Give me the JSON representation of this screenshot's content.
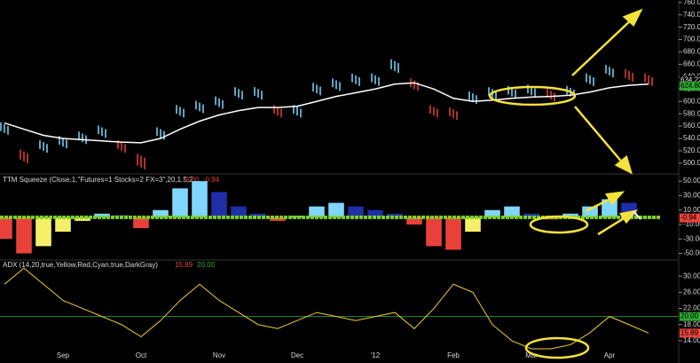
{
  "chart_data": [
    {
      "type": "price-bars",
      "categories": [
        null,
        null,
        null,
        "Sep",
        null,
        null,
        null,
        "Oct",
        null,
        null,
        null,
        "Nov",
        null,
        null,
        null,
        "Dec",
        null,
        null,
        null,
        "'12",
        null,
        null,
        null,
        "Feb",
        null,
        null,
        null,
        "Mar",
        null,
        null,
        null,
        "Apr",
        null,
        null
      ],
      "series": [
        {
          "name": "High",
          "values": [
            566,
            522,
            537,
            544,
            551,
            561,
            537,
            515,
            558,
            594,
            601,
            608,
            623,
            623,
            594,
            594,
            630,
            637,
            645,
            645,
            668,
            637,
            594,
            590,
            616,
            623,
            625,
            627,
            620,
            625,
            645,
            659,
            652,
            645
          ]
        },
        {
          "name": "Low",
          "values": [
            546,
            500,
            517,
            524,
            531,
            541,
            517,
            490,
            538,
            574,
            581,
            588,
            603,
            603,
            574,
            574,
            610,
            617,
            625,
            625,
            646,
            617,
            574,
            570,
            596,
            603,
            605,
            607,
            600,
            605,
            625,
            639,
            632,
            625
          ]
        },
        {
          "name": "MA",
          "color": "#ffffff",
          "values": [
            565,
            555,
            545,
            540,
            538,
            536,
            534,
            533,
            540,
            555,
            568,
            578,
            585,
            590,
            590,
            592,
            600,
            608,
            614,
            620,
            628,
            630,
            620,
            605,
            600,
            602,
            605,
            607,
            608,
            610,
            615,
            622,
            626,
            628
          ]
        }
      ],
      "up_color": "#7fd7ff",
      "down_color": "#e8413a",
      "ylim": [
        484,
        764
      ],
      "yticks": [
        {
          "value": 500,
          "label": "500.00"
        },
        {
          "value": 520,
          "label": "520.00"
        },
        {
          "value": 540,
          "label": "540.00"
        },
        {
          "value": 560,
          "label": "560.00"
        },
        {
          "value": 580,
          "label": "580.00"
        },
        {
          "value": 600,
          "label": "600.00"
        },
        {
          "value": 620,
          "label": "620.00"
        },
        {
          "value": 640,
          "label": "640.00"
        },
        {
          "value": 660,
          "label": "660.00"
        },
        {
          "value": 680,
          "label": "680.00"
        },
        {
          "value": 700,
          "label": "700.00"
        },
        {
          "value": 720,
          "label": "720.00"
        },
        {
          "value": 740,
          "label": "740.00"
        },
        {
          "value": 760,
          "label": "760.00"
        }
      ],
      "last_labels": [
        {
          "value": 634.22,
          "label": "634.22"
        },
        {
          "value": 624.8,
          "label": "624.80"
        }
      ]
    },
    {
      "type": "histogram-oscillator",
      "title": "TTM Squeeze (Close,1,\"Futures=1 Stocks=2 FX=3\",20,1.5,2,...",
      "readouts": [
        "0.00",
        "-0.94"
      ],
      "values": [
        -30,
        -50,
        -40,
        -20,
        -5,
        5,
        3,
        -15,
        10,
        40,
        50,
        35,
        15,
        5,
        -5,
        2,
        15,
        20,
        15,
        10,
        5,
        -10,
        -40,
        -45,
        -20,
        10,
        15,
        5,
        -3,
        5,
        15,
        25,
        20,
        -0.94
      ],
      "colors": {
        "up_rising": "#7fd7ff",
        "up_falling": "#1f2fa8",
        "down_falling": "#e8413a",
        "down_rising": "#f5f06a",
        "zero": "#7ed321"
      },
      "ylim": [
        -58,
        60
      ],
      "yticks": [
        {
          "value": 50,
          "label": "50.00"
        },
        {
          "value": 30,
          "label": "30.00"
        },
        {
          "value": 10,
          "label": "10.00"
        },
        {
          "value": -10,
          "label": "-10.00"
        },
        {
          "value": -30,
          "label": "-30.00"
        },
        {
          "value": -50,
          "label": "-50.00"
        }
      ],
      "last_labels": [
        {
          "value": -0.94,
          "label": "-0.94"
        }
      ]
    },
    {
      "type": "line",
      "title": "ADX (14,20,true,Yellow,Red,Cyan,true,DarkGray)",
      "readouts": [
        "15.89",
        "20.00"
      ],
      "values": [
        28,
        32,
        28,
        24,
        22,
        20,
        18,
        15,
        19,
        24,
        28,
        24,
        21,
        18,
        17,
        19,
        21,
        20,
        19,
        20,
        21,
        17,
        22,
        28,
        26,
        18,
        14,
        12,
        12,
        13,
        16,
        20,
        18,
        15.89
      ],
      "color": "#f0d030",
      "threshold": 20,
      "threshold_color": "#2e8b2e",
      "ylim": [
        12,
        34
      ],
      "yticks": [
        {
          "value": 30,
          "label": "30.00"
        },
        {
          "value": 26,
          "label": "26.00"
        },
        {
          "value": 22,
          "label": "22.00"
        },
        {
          "value": 18,
          "label": "18.00"
        },
        {
          "value": 14,
          "label": "14.00"
        }
      ],
      "last_labels": [
        {
          "value": 20,
          "label": "20.00"
        },
        {
          "value": 15.89,
          "label": "15.89"
        }
      ]
    }
  ]
}
